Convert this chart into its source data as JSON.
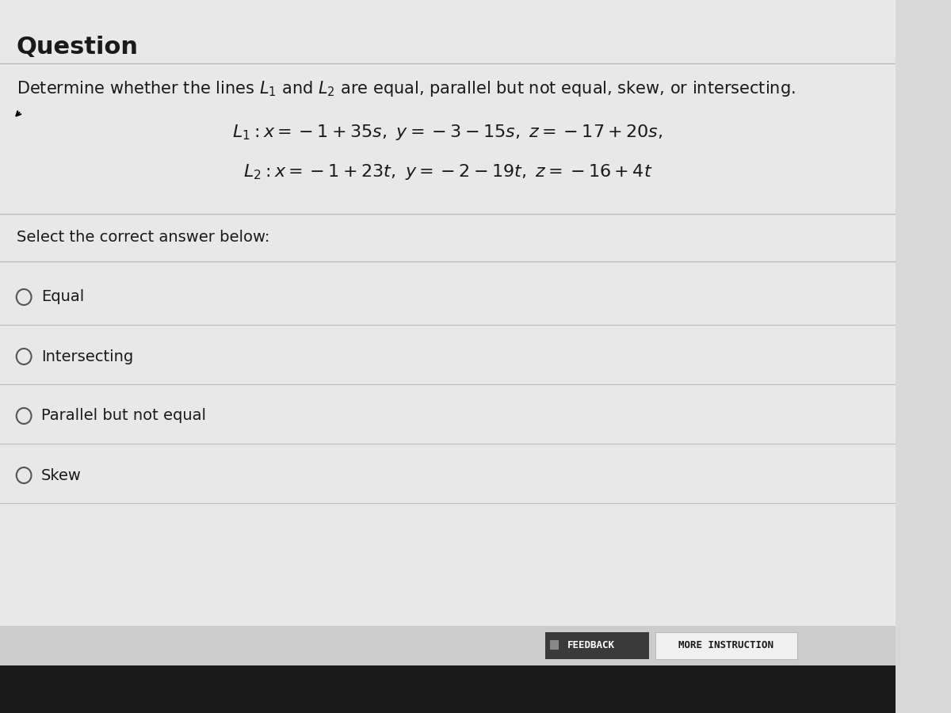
{
  "title": "Question",
  "title_fontsize": 22,
  "description": "Determine whether the lines $L_1$ and $L_2$ are equal, parallel but not equal, skew, or intersecting.",
  "description_fontsize": 15,
  "line1": "$L_1 : x = -1 + 35s,\\ y = -3 - 15s,\\ z = -17 + 20s,$",
  "line2": "$L_2 : x = -1 + 23t,\\ y = -2 - 19t,\\ z = -16 + 4t$",
  "equation_fontsize": 16,
  "select_text": "Select the correct answer below:",
  "select_fontsize": 14,
  "options": [
    "Equal",
    "Intersecting",
    "Parallel but not equal",
    "Skew"
  ],
  "option_fontsize": 14,
  "bg_color": "#d8d8d8",
  "panel_color": "#e8e8e8",
  "white_color": "#ffffff",
  "dark_color": "#1a1a1a",
  "btn_feedback_color": "#3a3a3a",
  "btn_more_color": "#f0f0f0",
  "btn_text_feedback": "FEEDBACK",
  "btn_text_more": "MORE INSTRUCTION",
  "bottom_bar_color": "#1a1a1a",
  "separator_color": "#bbbbbb"
}
